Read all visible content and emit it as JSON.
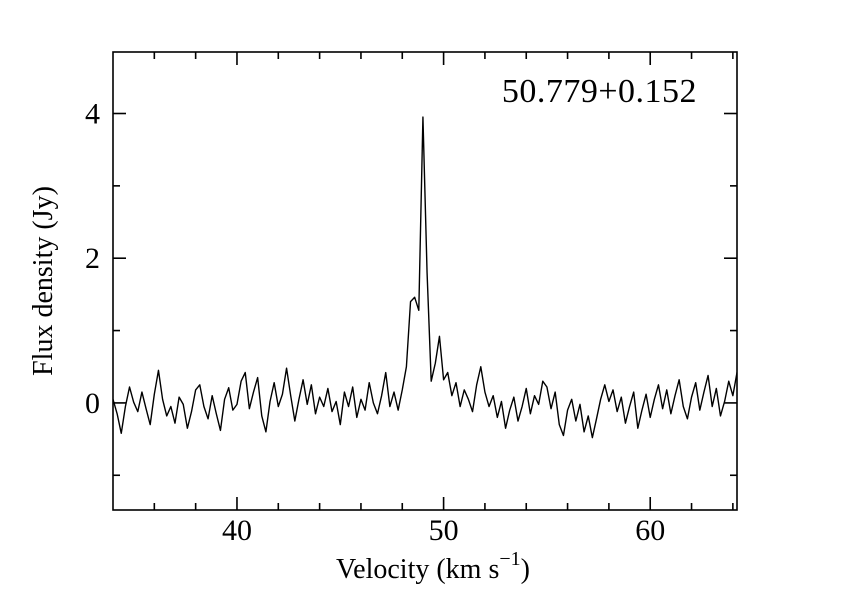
{
  "figure": {
    "background": "#ffffff",
    "foreground": "#000000"
  },
  "chart_data": {
    "type": "line",
    "title": "50.779+0.152",
    "xlabel": "Velocity (km s⁻¹)",
    "xlabel_parts": {
      "main": "Velocity (km s",
      "sup": "−1",
      "close": ")"
    },
    "ylabel": "Flux density (Jy)",
    "xlim": [
      34.0,
      64.2
    ],
    "ylim": [
      -1.48,
      4.85
    ],
    "grid": false,
    "legend_position": "none",
    "line_color": "#000000",
    "x_unit": "km/s",
    "y_unit": "Jy",
    "x_start": 34.0,
    "x_step": 0.2,
    "flux_jy": [
      0.05,
      -0.15,
      -0.42,
      -0.05,
      0.22,
      0.01,
      -0.12,
      0.15,
      -0.08,
      -0.3,
      0.12,
      0.45,
      0.05,
      -0.18,
      -0.05,
      -0.28,
      0.08,
      -0.02,
      -0.35,
      -0.12,
      0.18,
      0.25,
      -0.05,
      -0.22,
      0.1,
      -0.15,
      -0.38,
      0.05,
      0.21,
      -0.1,
      -0.02,
      0.3,
      0.42,
      -0.08,
      0.15,
      0.35,
      -0.18,
      -0.4,
      0.02,
      0.28,
      -0.05,
      0.12,
      0.48,
      0.1,
      -0.25,
      0.05,
      0.32,
      -0.02,
      0.25,
      -0.15,
      0.08,
      -0.05,
      0.2,
      -0.12,
      0.02,
      -0.3,
      0.15,
      -0.05,
      0.22,
      -0.2,
      0.05,
      -0.1,
      0.28,
      0.0,
      -0.15,
      0.1,
      0.42,
      -0.05,
      0.15,
      -0.1,
      0.18,
      0.5,
      1.4,
      1.46,
      1.28,
      3.95,
      1.8,
      0.3,
      0.55,
      0.92,
      0.32,
      0.42,
      0.1,
      0.28,
      -0.05,
      0.18,
      0.05,
      -0.12,
      0.25,
      0.5,
      0.15,
      -0.05,
      0.1,
      -0.2,
      0.02,
      -0.35,
      -0.1,
      0.08,
      -0.25,
      -0.05,
      0.2,
      -0.15,
      0.1,
      -0.02,
      0.3,
      0.22,
      -0.08,
      0.15,
      -0.3,
      -0.45,
      -0.1,
      0.05,
      -0.25,
      -0.02,
      -0.4,
      -0.18,
      -0.48,
      -0.22,
      0.05,
      0.25,
      0.02,
      0.18,
      -0.12,
      0.08,
      -0.28,
      -0.05,
      0.15,
      -0.35,
      -0.1,
      0.12,
      -0.2,
      0.05,
      0.25,
      -0.08,
      0.18,
      -0.15,
      0.1,
      0.32,
      -0.05,
      -0.22,
      0.08,
      0.28,
      -0.1,
      0.15,
      0.38,
      -0.05,
      0.2,
      -0.18,
      0.02,
      0.3,
      0.1,
      0.42
    ],
    "xticks": {
      "major": [
        40,
        50,
        60
      ],
      "major_labels": [
        "40",
        "50",
        "60"
      ],
      "minor": [
        36,
        38,
        42,
        44,
        46,
        48,
        52,
        54,
        56,
        58,
        62,
        64
      ]
    },
    "yticks": {
      "major": [
        0,
        2,
        4
      ],
      "major_labels": [
        "0",
        "2",
        "4"
      ],
      "minor": [
        -1,
        1,
        3
      ]
    }
  }
}
